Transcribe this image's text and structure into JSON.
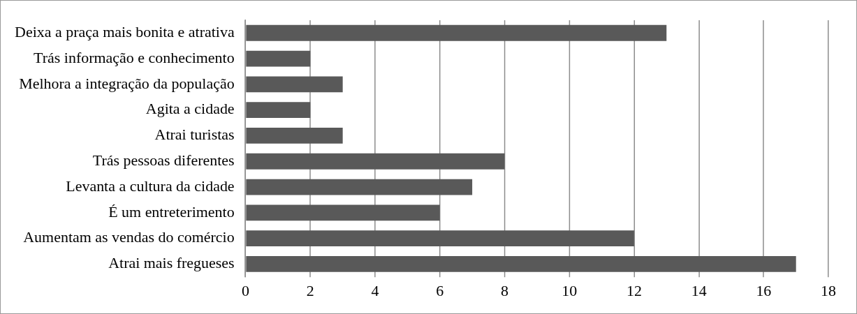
{
  "chart_data": {
    "type": "bar",
    "orientation": "horizontal",
    "categories": [
      "Deixa a praça mais bonita e atrativa",
      "Trás informação e conhecimento",
      "Melhora a integração da população",
      "Agita a cidade",
      "Atrai turistas",
      "Trás pessoas diferentes",
      "Levanta a cultura da cidade",
      "É um entreterimento",
      "Aumentam as vendas do comércio",
      "Atrai mais fregueses"
    ],
    "values": [
      13,
      2,
      3,
      2,
      3,
      8,
      7,
      6,
      12,
      17
    ],
    "color": "#595959",
    "xlim": [
      0,
      18
    ],
    "xticks": [
      0,
      2,
      4,
      6,
      8,
      10,
      12,
      14,
      16,
      18
    ],
    "grid": "x",
    "legend": false
  }
}
